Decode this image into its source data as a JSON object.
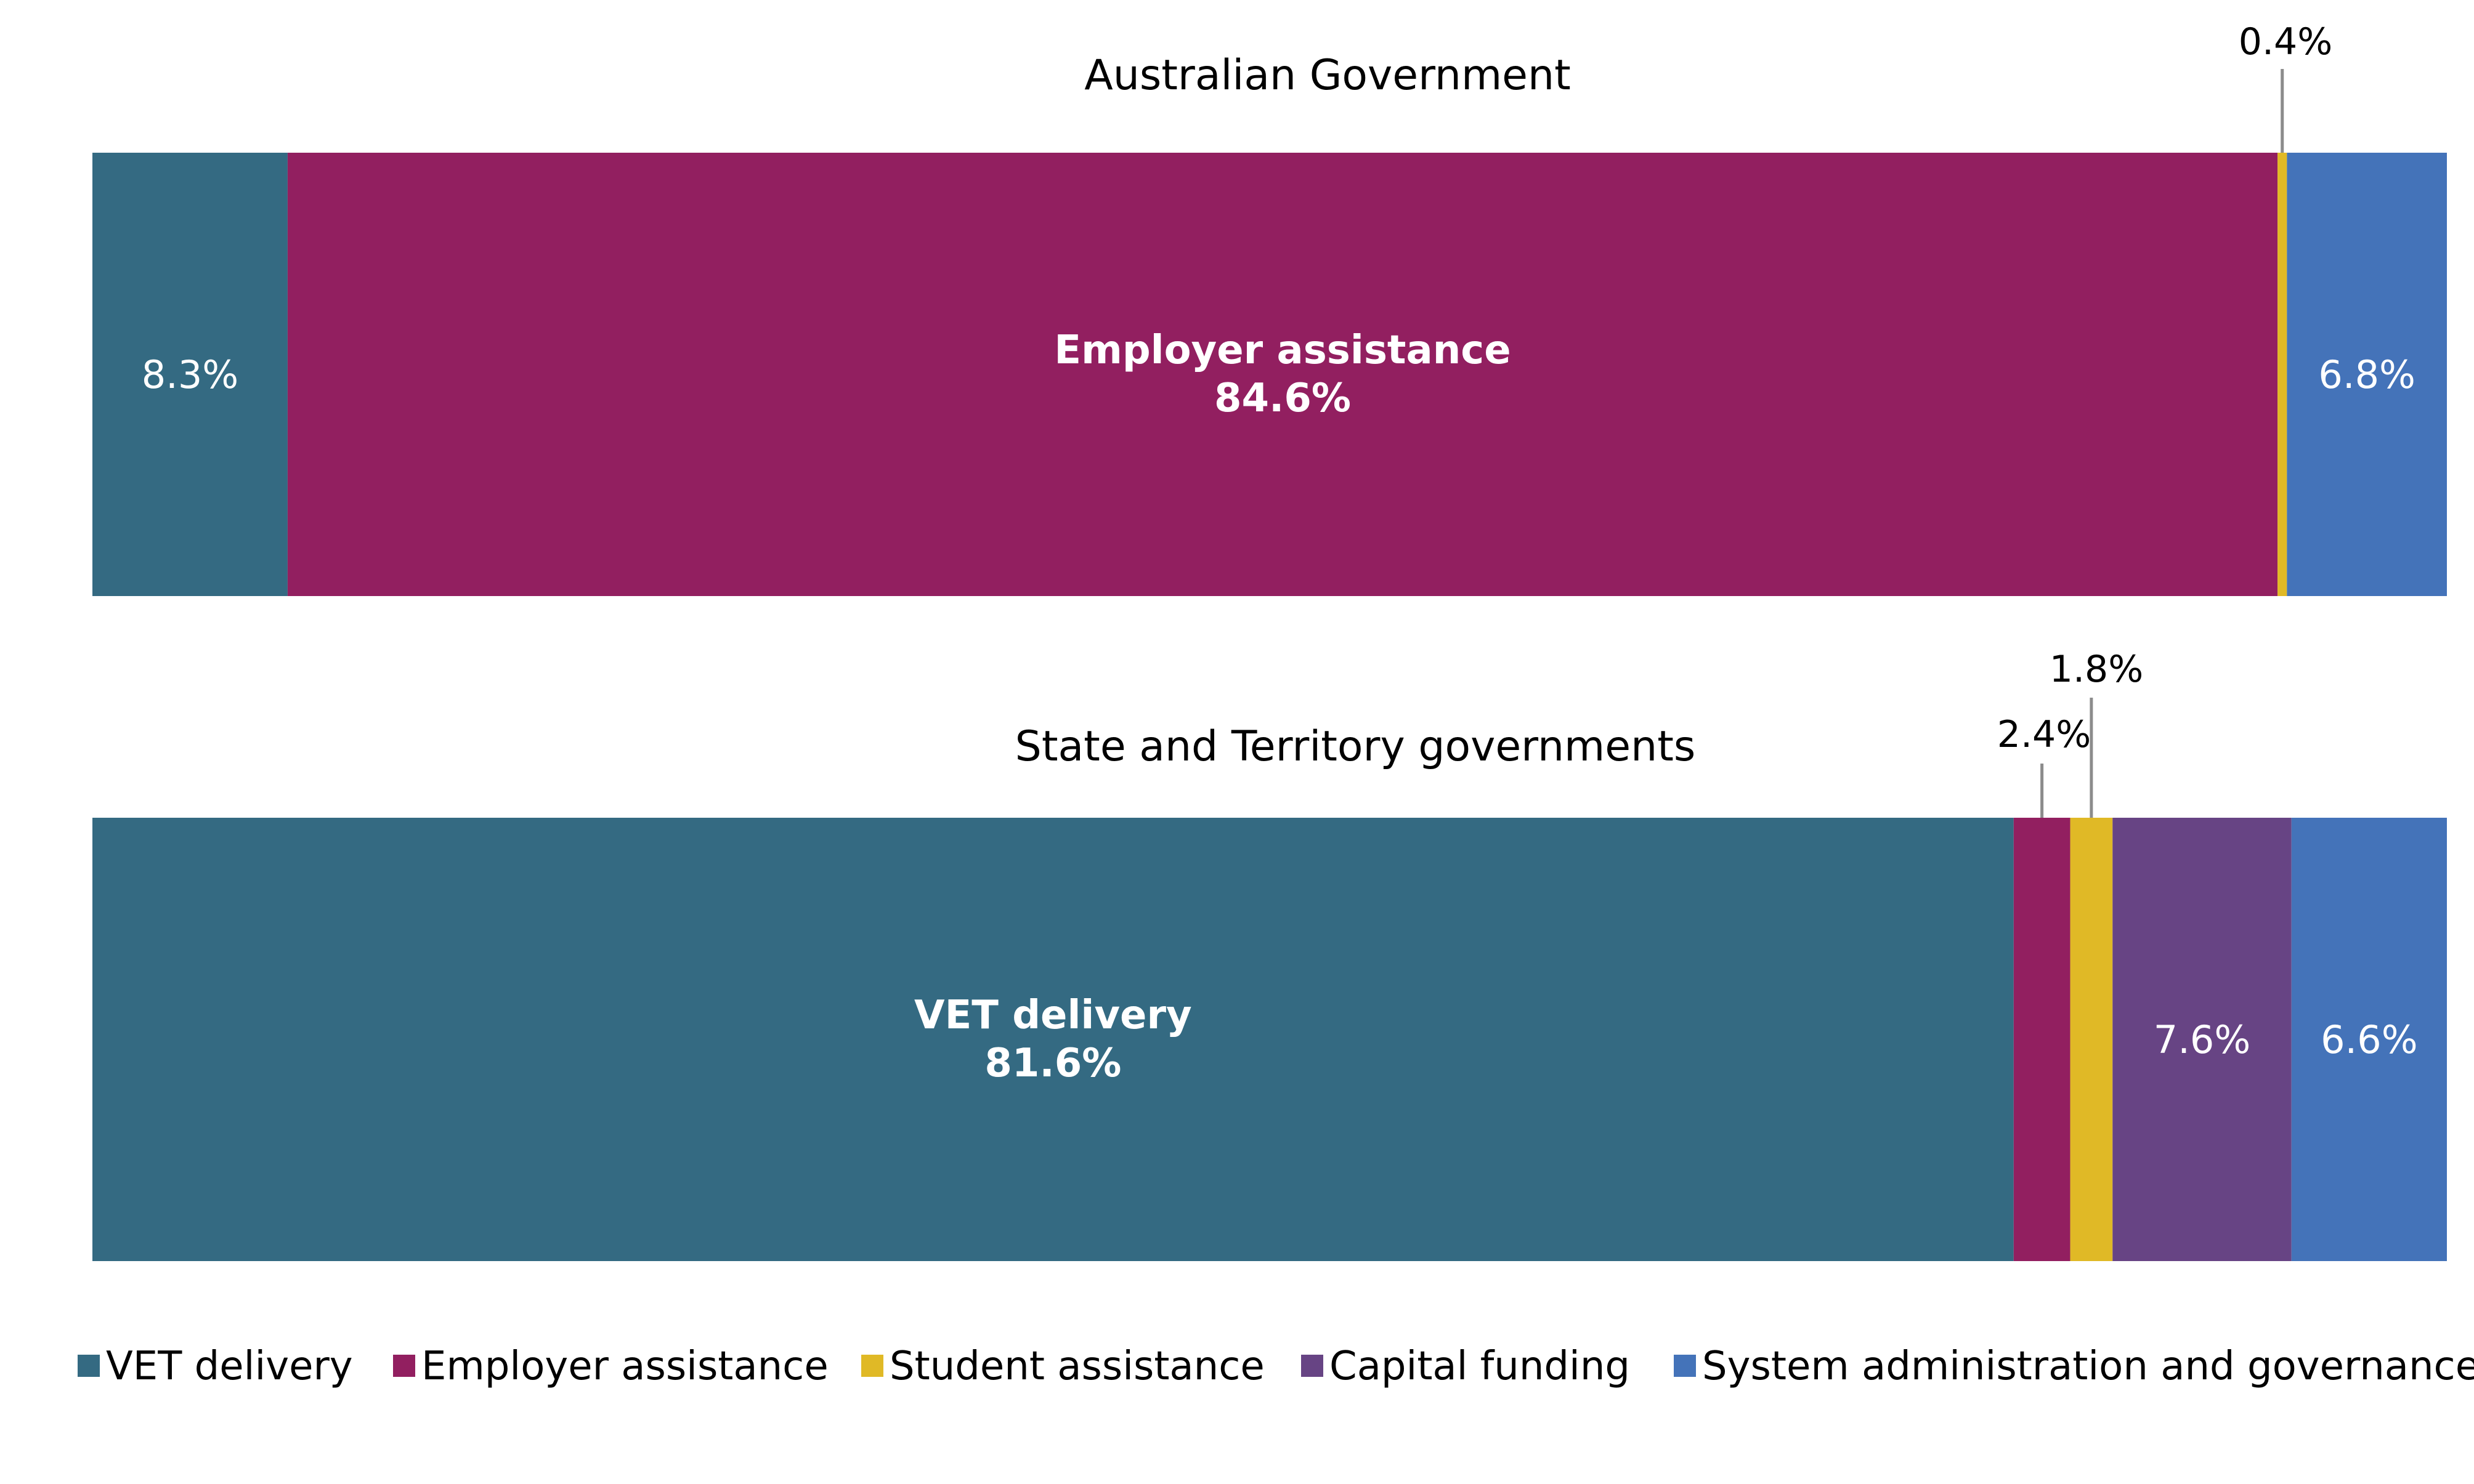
{
  "chart_data": {
    "type": "bar",
    "orientation": "horizontal",
    "stacked": "percent",
    "grid": false,
    "legend_position": "bottom",
    "categories": [
      "Australian Government",
      "State and Territory governments"
    ],
    "series": [
      {
        "name": "VET delivery",
        "color": "#346A82",
        "values": [
          8.3,
          81.6
        ]
      },
      {
        "name": "Employer assistance",
        "color": "#921F60",
        "values": [
          84.6,
          2.4
        ]
      },
      {
        "name": "Student assistance",
        "color": "#E0B926",
        "values": [
          0.4,
          1.8
        ]
      },
      {
        "name": "Capital funding",
        "color": "#674484",
        "values": [
          0,
          7.6
        ]
      },
      {
        "name": "System administration and governance",
        "color": "#4473B9",
        "values": [
          6.8,
          6.6
        ]
      }
    ],
    "segment_labels": [
      [
        {
          "series": 0,
          "text": "8.3%"
        },
        {
          "series": 1,
          "name": "Employer assistance",
          "text": "84.6%",
          "bold": true
        },
        {
          "series": 2,
          "text": "0.4%",
          "callout": true
        },
        {
          "series": 4,
          "text": "6.8%"
        }
      ],
      [
        {
          "series": 0,
          "name": "VET delivery",
          "text": "81.6%",
          "bold": true
        },
        {
          "series": 1,
          "text": "2.4%",
          "callout": true
        },
        {
          "series": 2,
          "text": "1.8%",
          "callout": true
        },
        {
          "series": 3,
          "text": "7.6%"
        },
        {
          "series": 4,
          "text": "6.6%"
        }
      ]
    ]
  }
}
